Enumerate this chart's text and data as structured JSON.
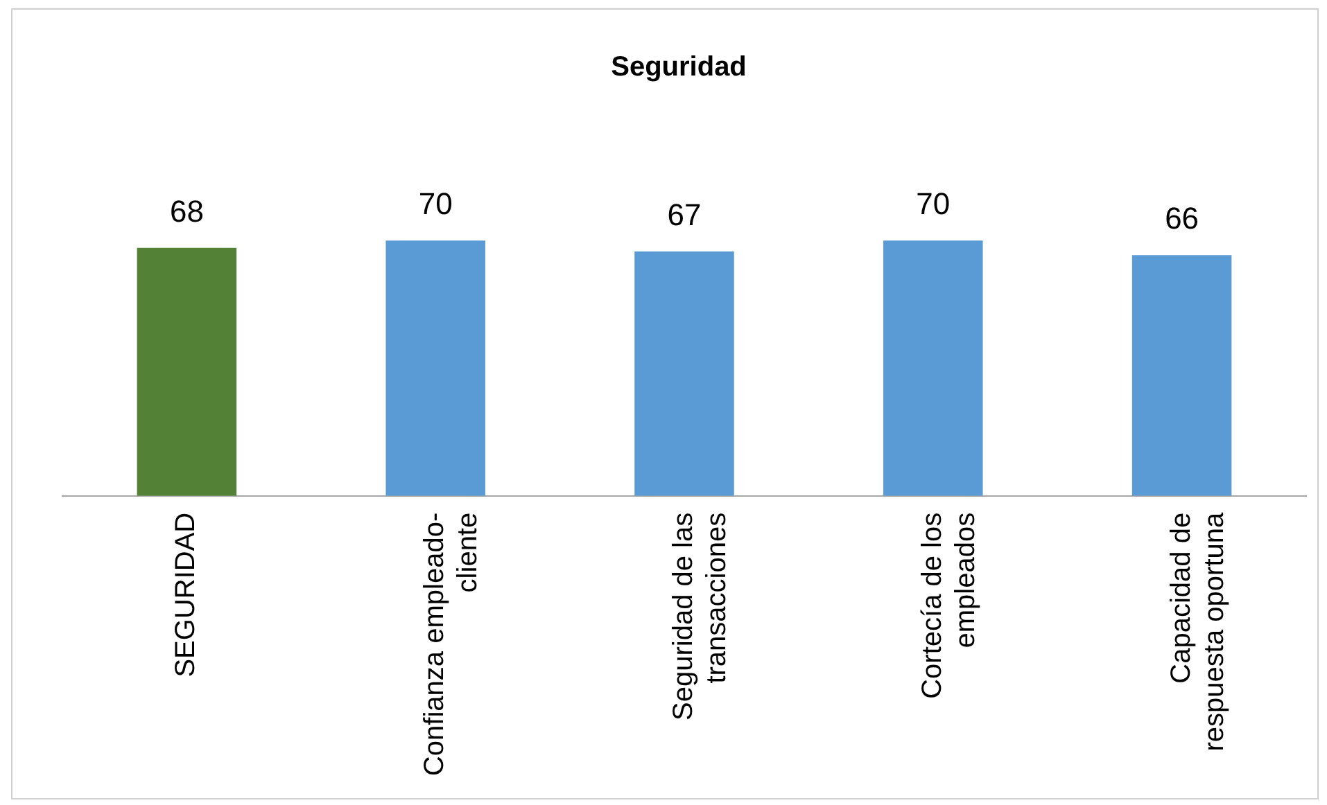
{
  "chart_data": {
    "type": "bar",
    "title": "Seguridad",
    "categories": [
      "SEGURIDAD",
      "Confianza empleado-cliente",
      "Seguridad de las transacciones",
      "Cortecía de los empleados",
      "Capacidad de respuesta oportuna"
    ],
    "values": [
      68,
      70,
      67,
      70,
      66
    ],
    "colors": [
      "#538135",
      "#5b9bd5",
      "#5b9bd5",
      "#5b9bd5",
      "#5b9bd5"
    ],
    "tick_labels": "x",
    "grid": false,
    "legend": false,
    "data_labels": true
  }
}
